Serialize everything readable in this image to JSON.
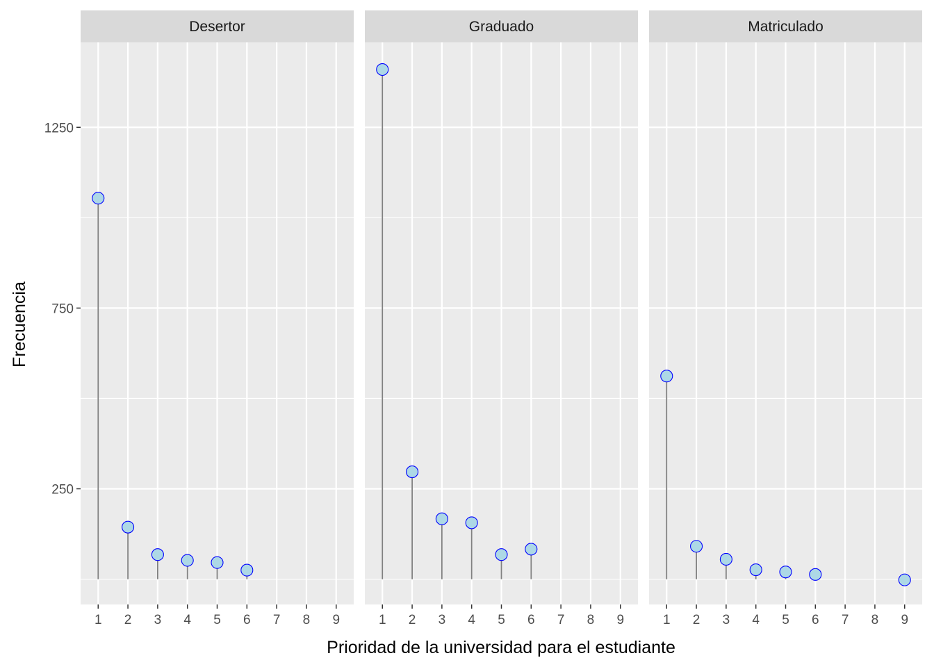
{
  "chart_data": {
    "type": "lollipop",
    "xlabel": "Prioridad de la universidad para el estudiante",
    "ylabel": "Frecuencia",
    "x_categories": [
      "1",
      "2",
      "3",
      "4",
      "5",
      "6",
      "7",
      "8",
      "9"
    ],
    "y_ticks": [
      250,
      750,
      1250
    ],
    "ylim": [
      -70,
      1485
    ],
    "grid": true,
    "colors": {
      "panel_bg": "#EBEBEB",
      "strip_bg": "#D9D9D9",
      "grid": "#FFFFFF",
      "stem": "#808080",
      "point_fill": "#ADD8E6",
      "point_stroke": "#0000FF",
      "tick": "#333333"
    },
    "facets": [
      {
        "name": "Desertor",
        "points": [
          {
            "x": 1,
            "y": 1054
          },
          {
            "x": 2,
            "y": 144
          },
          {
            "x": 3,
            "y": 68
          },
          {
            "x": 4,
            "y": 52
          },
          {
            "x": 5,
            "y": 46
          },
          {
            "x": 6,
            "y": 25
          }
        ]
      },
      {
        "name": "Graduado",
        "points": [
          {
            "x": 1,
            "y": 1410
          },
          {
            "x": 2,
            "y": 297
          },
          {
            "x": 3,
            "y": 167
          },
          {
            "x": 4,
            "y": 156
          },
          {
            "x": 5,
            "y": 68
          },
          {
            "x": 6,
            "y": 83
          }
        ]
      },
      {
        "name": "Matriculado",
        "points": [
          {
            "x": 1,
            "y": 562
          },
          {
            "x": 2,
            "y": 91
          },
          {
            "x": 3,
            "y": 55
          },
          {
            "x": 4,
            "y": 26
          },
          {
            "x": 5,
            "y": 20
          },
          {
            "x": 6,
            "y": 13
          },
          {
            "x": 9,
            "y": -2
          }
        ]
      }
    ]
  }
}
